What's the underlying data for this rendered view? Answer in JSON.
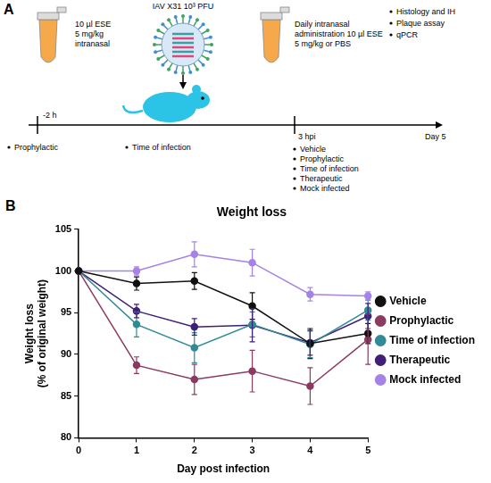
{
  "chart_data": {
    "type": "line",
    "title": "Weight loss",
    "x_label": "Day post infection",
    "y_label": [
      "Weight loss",
      "(% of original weight)"
    ],
    "x": [
      0,
      1,
      2,
      3,
      4,
      5
    ],
    "xlim": [
      0,
      5
    ],
    "xticks": [
      0,
      1,
      2,
      3,
      4,
      5
    ],
    "ylim": [
      80,
      105
    ],
    "yticks": [
      80,
      85,
      90,
      95,
      100,
      105
    ],
    "grid": false,
    "legend": "right",
    "series": [
      {
        "name": "Vehicle",
        "color": "#111111",
        "marker": "circle",
        "line_style": "solid",
        "values": [
          100,
          98.5,
          98.8,
          95.8,
          91.3,
          92.5
        ],
        "errors": [
          0,
          0.8,
          1.0,
          1.6,
          1.8,
          1.2
        ]
      },
      {
        "name": "Prophylactic",
        "color": "#8b3a62",
        "marker": "circle",
        "line_style": "solid",
        "values": [
          100,
          88.7,
          87.0,
          88.0,
          86.2,
          91.8
        ],
        "errors": [
          0,
          1.0,
          1.8,
          2.5,
          2.2,
          3.0
        ]
      },
      {
        "name": "Time of infection",
        "color": "#2f8b96",
        "marker": "circle",
        "line_style": "solid",
        "values": [
          100,
          93.6,
          90.8,
          93.6,
          91.2,
          95.3
        ],
        "errors": [
          0,
          1.5,
          1.8,
          1.5,
          1.6,
          1.2
        ]
      },
      {
        "name": "Therapeutic",
        "color": "#3f1f78",
        "marker": "circle",
        "line_style": "solid",
        "values": [
          100,
          95.2,
          93.3,
          93.5,
          91.4,
          94.6
        ],
        "errors": [
          0,
          0.8,
          1.0,
          2.0,
          1.5,
          1.5
        ]
      },
      {
        "name": "Mock infected",
        "color": "#a682e8",
        "marker": "circle",
        "line_style": "solid",
        "values": [
          100,
          100.0,
          102.0,
          101.0,
          97.2,
          97.0
        ],
        "errors": [
          0,
          0.5,
          1.5,
          1.6,
          0.8,
          0.5
        ]
      }
    ]
  },
  "diagram": {
    "panel_labels": [
      "A",
      "B"
    ],
    "prophylactic_dose": [
      "10 µl ESE",
      "5 mg/kg",
      "intranasal"
    ],
    "virus": "IAV X31 10³ PFU",
    "daily_dose": [
      "Daily intranasal",
      "administration 10 µl ESE",
      "5 mg/kg or PBS"
    ],
    "readouts": [
      "Histology and IH",
      "Plaque assay",
      "qPCR"
    ],
    "timeline": [
      "-2 h",
      "3 hpi",
      "Day 5"
    ],
    "time_points": [
      "Prophylactic",
      "Time of infection"
    ],
    "groups": [
      "Vehicle",
      "Prophylactic",
      "Time of infection",
      "Therapeutic",
      "Mock infected"
    ]
  }
}
